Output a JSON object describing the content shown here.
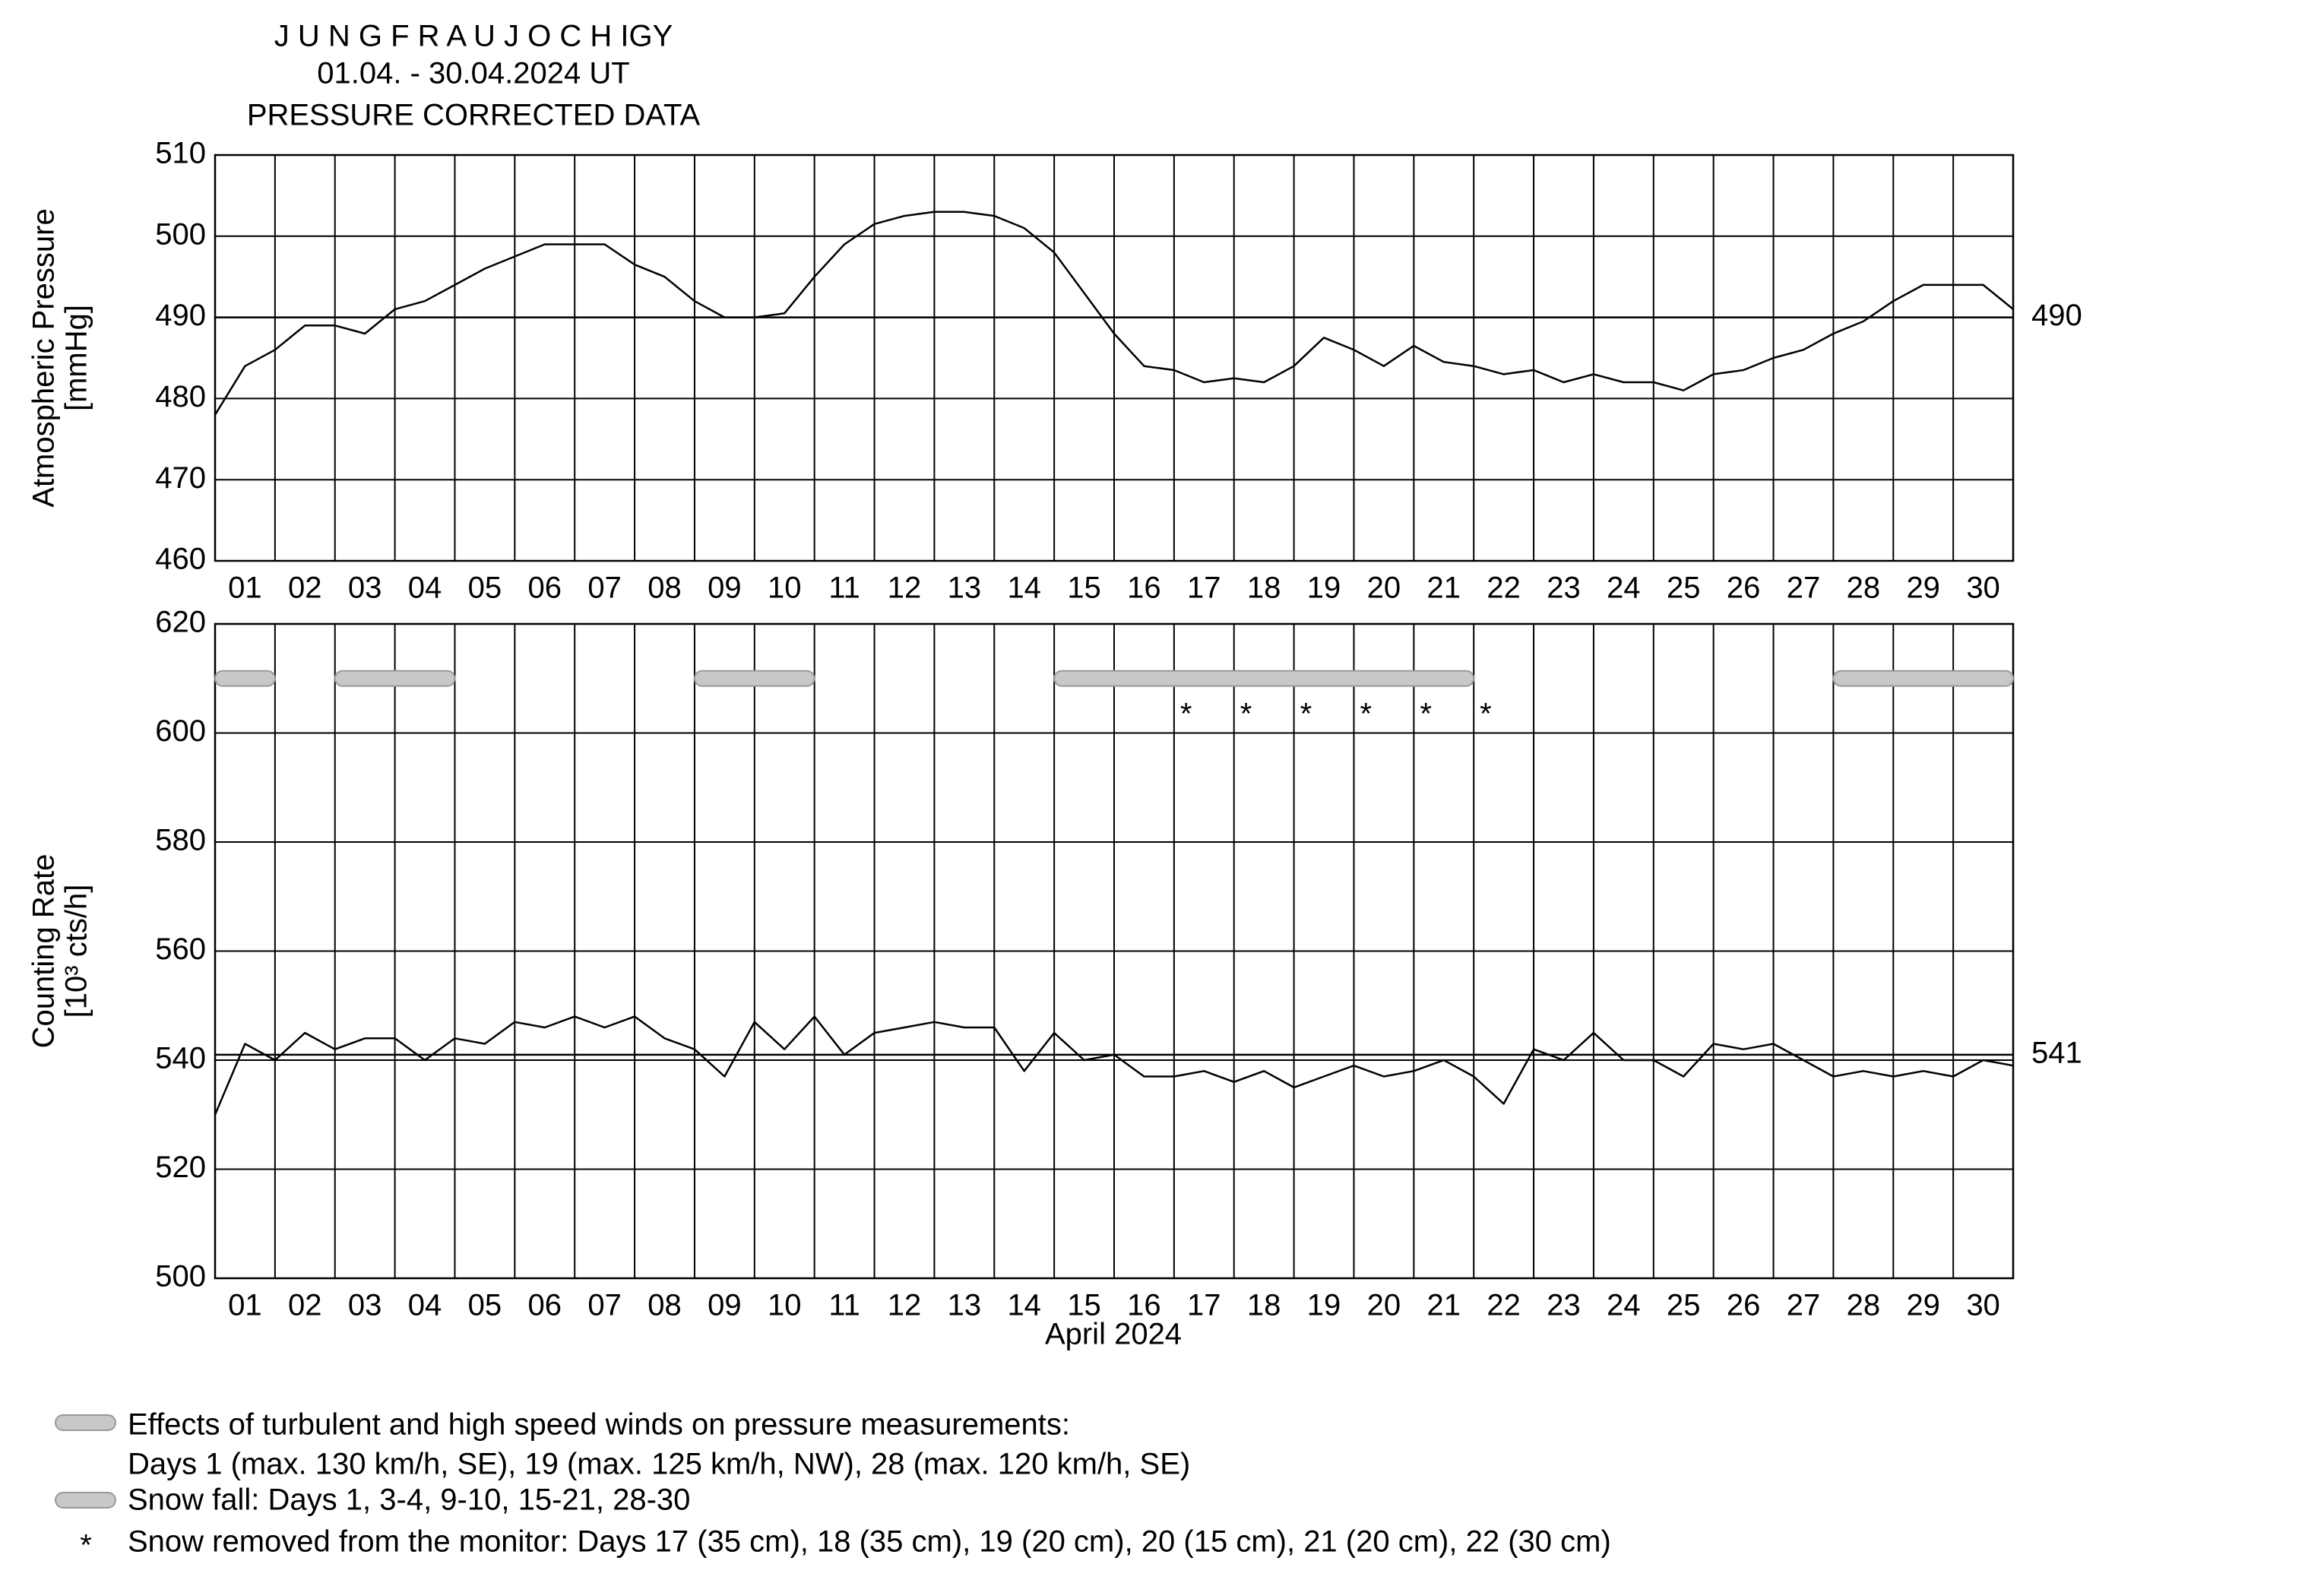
{
  "chart_data": [
    {
      "type": "line",
      "title": [
        "J U N G F R A U J O C H  IGY",
        "01.04. - 30.04.2024  UT",
        "PRESSURE CORRECTED DATA"
      ],
      "ylabel": [
        "Atmospheric Pressure",
        "[mmHg]"
      ],
      "categories": [
        "01",
        "02",
        "03",
        "04",
        "05",
        "06",
        "07",
        "08",
        "09",
        "10",
        "11",
        "12",
        "13",
        "14",
        "15",
        "16",
        "17",
        "18",
        "19",
        "20",
        "21",
        "22",
        "23",
        "24",
        "25",
        "26",
        "27",
        "28",
        "29",
        "30"
      ],
      "xlim": [
        1,
        31
      ],
      "x": [
        1,
        1.5,
        2,
        2.5,
        3,
        3.5,
        4,
        4.5,
        5,
        5.5,
        6,
        6.5,
        7,
        7.5,
        8,
        8.5,
        9,
        9.5,
        10,
        10.5,
        11,
        11.5,
        12,
        12.5,
        13,
        13.5,
        14,
        14.5,
        15,
        15.5,
        16,
        16.5,
        17,
        17.5,
        18,
        18.5,
        19,
        19.5,
        20,
        20.5,
        21,
        21.5,
        22,
        22.5,
        23,
        23.5,
        24,
        24.5,
        25,
        25.5,
        26,
        26.5,
        27,
        27.5,
        28,
        28.5,
        29,
        29.5,
        30,
        30.5,
        31
      ],
      "series": [
        {
          "color": "#000000",
          "values": [
            478,
            484,
            486,
            489,
            489,
            488,
            491,
            492,
            494,
            496,
            497.5,
            499,
            499,
            499,
            496.5,
            495,
            492,
            490,
            490,
            490.5,
            495,
            499,
            501.5,
            502.5,
            503,
            503,
            502.5,
            501,
            498,
            493,
            488,
            484,
            483.5,
            482,
            482.5,
            482,
            484,
            487.5,
            486,
            484,
            486.5,
            484.5,
            484,
            483,
            483.5,
            482,
            483,
            482,
            482,
            481,
            483,
            483.5,
            485,
            486,
            488,
            489.5,
            492,
            494,
            494,
            494,
            491
          ]
        }
      ],
      "reference": 490,
      "ylim": [
        460,
        510
      ],
      "yticks": [
        460,
        470,
        480,
        490,
        500,
        510
      ],
      "grid": true
    },
    {
      "type": "line",
      "ylabel": [
        "Counting Rate",
        "[10³ cts/h]"
      ],
      "xlabel": "April 2024",
      "categories": [
        "01",
        "02",
        "03",
        "04",
        "05",
        "06",
        "07",
        "08",
        "09",
        "10",
        "11",
        "12",
        "13",
        "14",
        "15",
        "16",
        "17",
        "18",
        "19",
        "20",
        "21",
        "22",
        "23",
        "24",
        "25",
        "26",
        "27",
        "28",
        "29",
        "30"
      ],
      "xlim": [
        1,
        31
      ],
      "x": [
        1,
        1.5,
        2,
        2.5,
        3,
        3.5,
        4,
        4.5,
        5,
        5.5,
        6,
        6.5,
        7,
        7.5,
        8,
        8.5,
        9,
        9.5,
        10,
        10.5,
        11,
        11.5,
        12,
        12.5,
        13,
        13.5,
        14,
        14.5,
        15,
        15.5,
        16,
        16.5,
        17,
        17.5,
        18,
        18.5,
        19,
        19.5,
        20,
        20.5,
        21,
        21.5,
        22,
        22.5,
        23,
        23.5,
        24,
        24.5,
        25,
        25.5,
        26,
        26.5,
        27,
        27.5,
        28,
        28.5,
        29,
        29.5,
        30,
        30.5,
        31
      ],
      "series": [
        {
          "color": "#000000",
          "values": [
            530,
            543,
            540,
            545,
            542,
            544,
            544,
            540,
            544,
            543,
            547,
            546,
            548,
            546,
            548,
            544,
            542,
            537,
            547,
            542,
            548,
            541,
            545,
            546,
            547,
            546,
            546,
            538,
            545,
            540,
            541,
            537,
            537,
            538,
            536,
            538,
            535,
            537,
            539,
            537,
            538,
            540,
            537,
            532,
            542,
            540,
            545,
            540,
            540,
            537,
            543,
            542,
            543,
            540,
            537,
            538,
            537,
            538,
            537,
            540,
            539
          ]
        }
      ],
      "reference": 541,
      "bands": [
        [
          1,
          2
        ],
        [
          3,
          5
        ],
        [
          9,
          11
        ],
        [
          15,
          22
        ],
        [
          28,
          31
        ]
      ],
      "band_y": 610,
      "markers": {
        "x": [
          17.2,
          18.2,
          19.2,
          20.2,
          21.2,
          22.2
        ],
        "y": [
          604,
          604,
          604,
          604,
          604,
          604
        ]
      },
      "ylim": [
        500,
        620
      ],
      "yticks": [
        500,
        520,
        540,
        560,
        580,
        600,
        620
      ],
      "grid": true
    }
  ],
  "legend": [
    {
      "text": [
        "Effects of turbulent and high speed winds on pressure measurements:",
        "Days 1 (max. 130 km/h, SE), 19 (max. 125 km/h, NW), 28 (max. 120 km/h, SE)"
      ]
    },
    {
      "text": [
        "Snow fall: Days 1, 3-4, 9-10, 15-21, 28-30"
      ]
    },
    {
      "symbol": "*",
      "text": [
        "Snow removed from the monitor: Days 17 (35 cm), 18 (35 cm), 19 (20 cm), 20 (15 cm), 21 (20 cm), 22 (30 cm)"
      ]
    }
  ]
}
